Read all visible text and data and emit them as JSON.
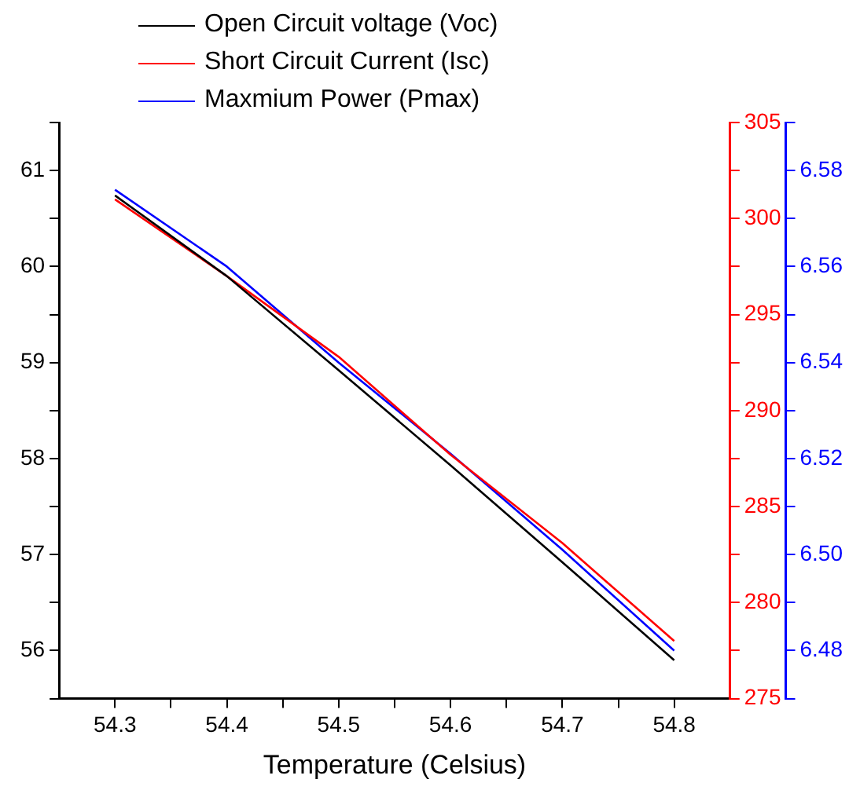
{
  "chart_data": {
    "type": "line",
    "xlabel": "Temperature (Celsius)",
    "x": [
      54.3,
      54.4,
      54.5,
      54.6,
      54.7,
      54.8
    ],
    "series": [
      {
        "name": "Open Circuit voltage (Voc)",
        "color": "#000000",
        "axis": "y",
        "values": [
          60.74,
          59.9,
          58.92,
          57.93,
          56.92,
          55.9
        ]
      },
      {
        "name": "Short Circuit Current (Isc)",
        "color": "#ff0000",
        "axis": "y2",
        "values": [
          301.0,
          297.0,
          292.8,
          287.7,
          283.1,
          278.0
        ]
      },
      {
        "name": "Maxmium Power (Pmax)",
        "color": "#0000ff",
        "axis": "y3",
        "values": [
          6.576,
          6.56,
          6.54,
          6.521,
          6.501,
          6.48
        ]
      }
    ],
    "xlim": [
      54.25,
      54.85
    ],
    "xticks": [
      54.3,
      {
        "value": 54.35,
        "label": null
      },
      54.4,
      {
        "value": 54.45,
        "label": null
      },
      54.5,
      {
        "value": 54.55,
        "label": null
      },
      54.6,
      {
        "value": 54.65,
        "label": null
      },
      54.7,
      {
        "value": 54.75,
        "label": null
      },
      54.8
    ],
    "ylim": [
      55.5,
      61.5
    ],
    "yticks": [
      {
        "value": 55.5,
        "label": null
      },
      56,
      {
        "value": 56.5,
        "label": null
      },
      57,
      {
        "value": 57.5,
        "label": null
      },
      58,
      {
        "value": 58.5,
        "label": null
      },
      59,
      {
        "value": 59.5,
        "label": null
      },
      60,
      {
        "value": 60.5,
        "label": null
      },
      61,
      {
        "value": 61.5,
        "label": null
      }
    ],
    "y2lim": [
      275,
      305
    ],
    "y2ticks": [
      275,
      {
        "value": 277.5,
        "label": null
      },
      280,
      {
        "value": 282.5,
        "label": null
      },
      285,
      {
        "value": 287.5,
        "label": null
      },
      290,
      {
        "value": 292.5,
        "label": null
      },
      295,
      {
        "value": 297.5,
        "label": null
      },
      300,
      {
        "value": 302.5,
        "label": null
      },
      305
    ],
    "y3lim": [
      6.47,
      6.59
    ],
    "y3ticks": [
      {
        "value": 6.47,
        "label": null
      },
      6.48,
      {
        "value": 6.49,
        "label": null
      },
      {
        "value": 6.5,
        "label": "6.50"
      },
      {
        "value": 6.51,
        "label": null
      },
      6.52,
      {
        "value": 6.53,
        "label": null
      },
      6.54,
      {
        "value": 6.55,
        "label": null
      },
      6.56,
      {
        "value": 6.57,
        "label": null
      },
      6.58,
      {
        "value": 6.59,
        "label": null
      }
    ],
    "grid": false,
    "legend": "top",
    "marker": "none",
    "line_style": "solid"
  }
}
